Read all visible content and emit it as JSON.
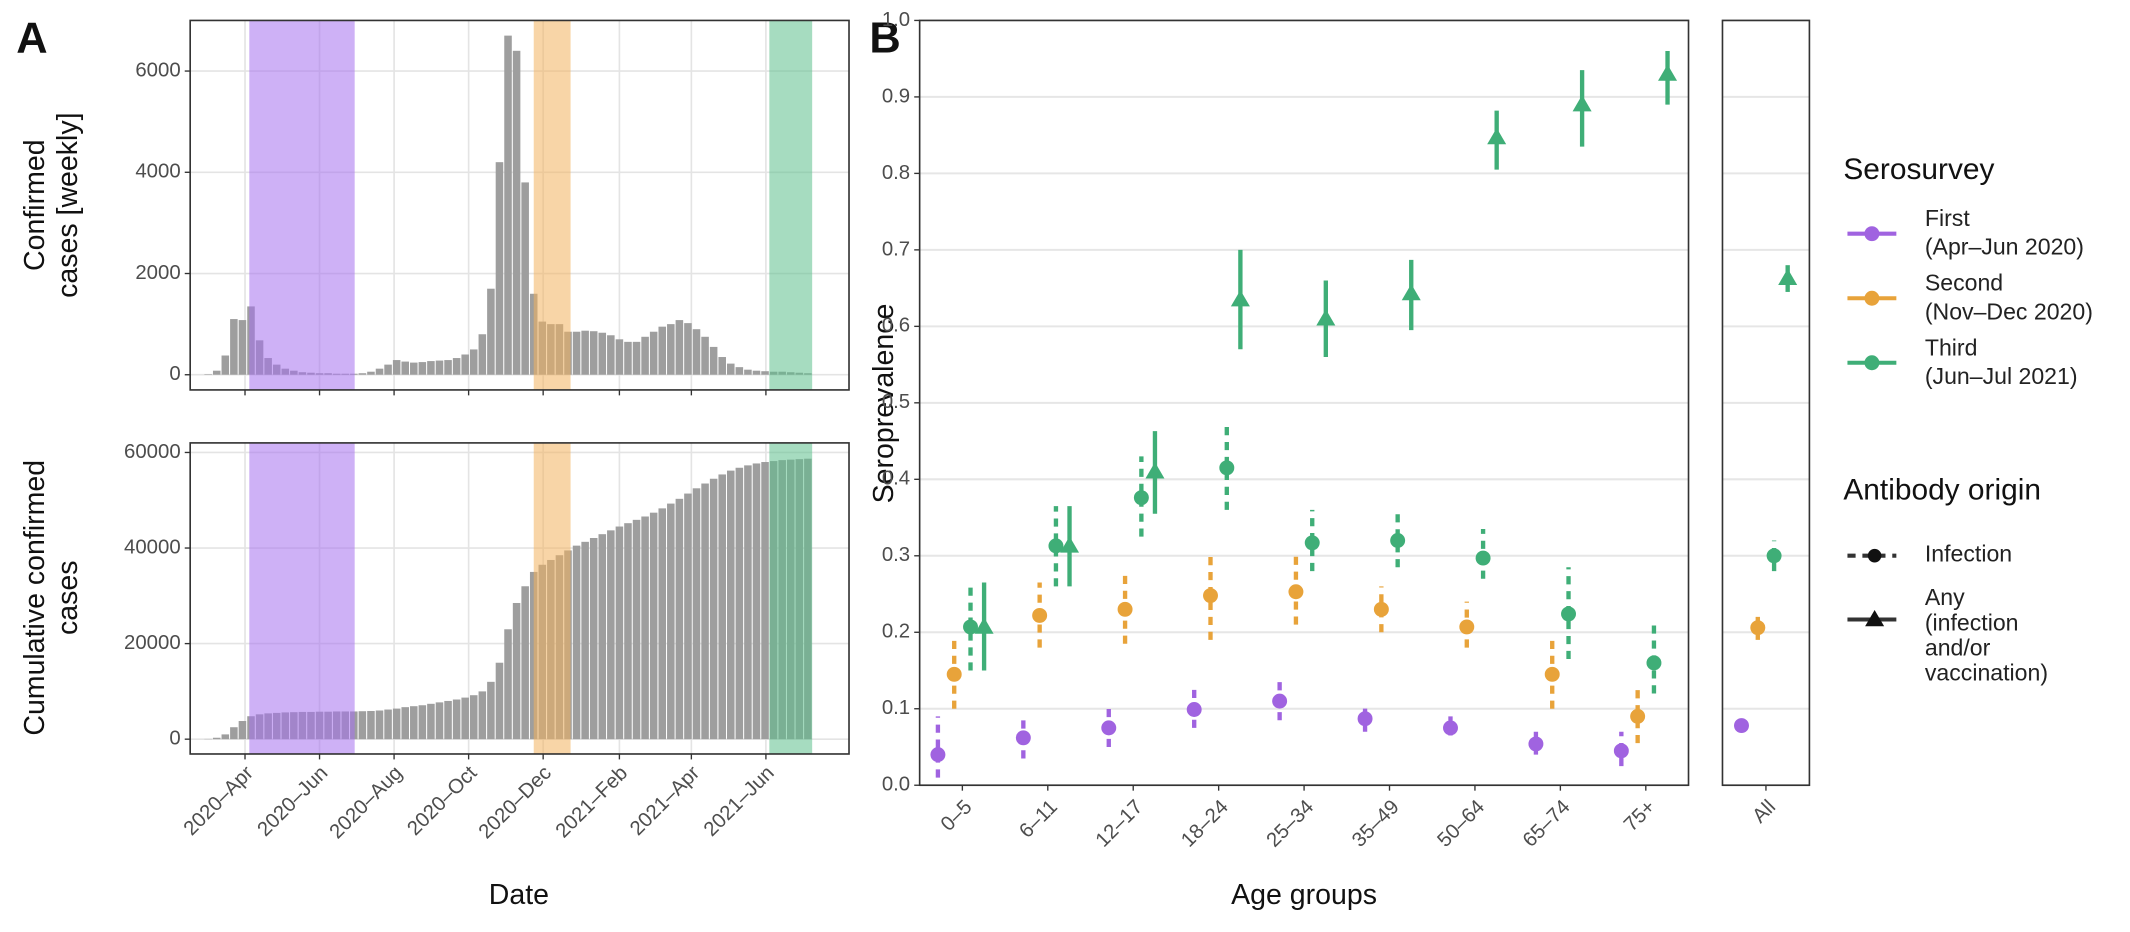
{
  "chart_data": [
    {
      "type": "bar",
      "panel": "A",
      "ylabel": [
        "Confirmed",
        "cases [weekly]"
      ],
      "x": [
        0,
        1,
        2,
        3,
        4,
        5,
        6,
        7,
        8,
        9,
        10,
        11,
        12,
        13,
        14,
        15,
        16,
        17,
        18,
        19,
        20,
        21,
        22,
        23,
        24,
        25,
        26,
        27,
        28,
        29,
        30,
        31,
        32,
        33,
        34,
        35,
        36,
        37,
        38,
        39,
        40,
        41,
        42,
        43,
        44,
        45,
        46,
        47,
        48,
        49,
        50,
        51,
        52,
        53,
        54,
        55,
        56,
        57,
        58,
        59,
        60,
        61,
        62,
        63,
        64,
        65,
        66,
        67,
        68,
        69,
        70
      ],
      "values": [
        10,
        80,
        380,
        1100,
        1080,
        1350,
        680,
        330,
        200,
        120,
        80,
        50,
        40,
        30,
        30,
        20,
        20,
        20,
        30,
        60,
        120,
        200,
        290,
        260,
        240,
        250,
        270,
        280,
        290,
        330,
        400,
        500,
        800,
        1700,
        4200,
        6700,
        6400,
        3800,
        1600,
        1050,
        1000,
        1000,
        850,
        850,
        870,
        860,
        830,
        780,
        700,
        650,
        650,
        750,
        850,
        950,
        1000,
        1080,
        1020,
        900,
        750,
        550,
        350,
        220,
        150,
        100,
        80,
        70,
        60,
        60,
        50,
        40,
        30
      ],
      "color": "#9e9e9e",
      "xlim": [
        -2.1,
        74.8
      ],
      "xticks": [
        4.3,
        13,
        21.7,
        30.4,
        39.1,
        48,
        56.4,
        65.1
      ],
      "ylim": [
        -300,
        7000
      ],
      "yticks": [
        0,
        2000,
        4000,
        6000
      ],
      "grid": true,
      "bands": [
        {
          "start": 4.8,
          "end": 17.1,
          "color": "#a571ee"
        },
        {
          "start": 38,
          "end": 42.3,
          "color": "#f2b25e"
        },
        {
          "start": 65.5,
          "end": 70.5,
          "color": "#5cc08c"
        }
      ]
    },
    {
      "type": "bar",
      "ylabel": [
        "Cumulative confirmed",
        "cases"
      ],
      "xlabel": "Date",
      "x": [
        0,
        1,
        2,
        3,
        4,
        5,
        6,
        7,
        8,
        9,
        10,
        11,
        12,
        13,
        14,
        15,
        16,
        17,
        18,
        19,
        20,
        21,
        22,
        23,
        24,
        25,
        26,
        27,
        28,
        29,
        30,
        31,
        32,
        33,
        34,
        35,
        36,
        37,
        38,
        39,
        40,
        41,
        42,
        43,
        44,
        45,
        46,
        47,
        48,
        49,
        50,
        51,
        52,
        53,
        54,
        55,
        56,
        57,
        58,
        59,
        60,
        61,
        62,
        63,
        64,
        65,
        66,
        67,
        68,
        69,
        70
      ],
      "values": [
        50,
        300,
        1000,
        2500,
        3800,
        4800,
        5200,
        5400,
        5500,
        5600,
        5650,
        5700,
        5700,
        5750,
        5750,
        5800,
        5800,
        5800,
        5850,
        5900,
        6000,
        6200,
        6400,
        6700,
        6900,
        7100,
        7400,
        7700,
        8000,
        8300,
        8700,
        9200,
        10000,
        12000,
        16000,
        23000,
        28500,
        32000,
        35000,
        36500,
        37500,
        38500,
        39500,
        40500,
        41300,
        42100,
        42900,
        43700,
        44500,
        45200,
        45900,
        46600,
        47400,
        48300,
        49300,
        50300,
        51400,
        52500,
        53500,
        54500,
        55400,
        56200,
        56800,
        57300,
        57700,
        58000,
        58200,
        58400,
        58500,
        58600,
        58700
      ],
      "color": "#9e9e9e",
      "xlim": [
        -2.1,
        74.8
      ],
      "xticks": [
        {
          "value": 4.3,
          "label": "2020–Apr"
        },
        {
          "value": 13,
          "label": "2020–Jun"
        },
        {
          "value": 21.7,
          "label": "2020–Aug"
        },
        {
          "value": 30.4,
          "label": "2020–Oct"
        },
        {
          "value": 39.1,
          "label": "2020–Dec"
        },
        {
          "value": 48,
          "label": "2021–Feb"
        },
        {
          "value": 56.4,
          "label": "2021–Apr"
        },
        {
          "value": 65.1,
          "label": "2021–Jun"
        }
      ],
      "ylim": [
        -3100,
        62000
      ],
      "yticks": [
        0,
        20000,
        40000,
        60000
      ],
      "grid": true,
      "bands": [
        {
          "start": 4.8,
          "end": 17.1,
          "color": "#a571ee"
        },
        {
          "start": 38,
          "end": 42.3,
          "color": "#f2b25e"
        },
        {
          "start": 65.5,
          "end": 70.5,
          "color": "#5cc08c"
        }
      ]
    },
    {
      "type": "pointrange",
      "panel": "B",
      "xlabel": "Age groups",
      "ylabel": "Seroprevalence",
      "categories": [
        "0–5",
        "6–11",
        "12–17",
        "18–24",
        "25–34",
        "35–49",
        "50–64",
        "65–74",
        "75+"
      ],
      "ylim": [
        0,
        1
      ],
      "yticks": [
        {
          "value": 0,
          "label": "0.0"
        },
        0.1,
        0.2,
        0.3,
        0.4,
        0.5,
        0.6,
        0.7,
        0.8,
        0.9,
        {
          "value": 1,
          "label": "1.0"
        }
      ],
      "grid": true,
      "legend": {
        "title": "Serosurvey"
      },
      "origin_legend": {
        "title": "Antibody origin",
        "infection": "Infection",
        "any": [
          "Any",
          "(infection",
          "and/or",
          "vaccination)"
        ]
      },
      "series": [
        {
          "name": "First",
          "period": "(Apr–Jun 2020)",
          "color": "#a063e0",
          "infection": {
            "values": [
              0.04,
              0.062,
              0.075,
              0.099,
              0.11,
              0.087,
              0.075,
              0.054,
              0.045
            ],
            "lower": [
              0.01,
              0.035,
              0.05,
              0.075,
              0.085,
              0.07,
              0.065,
              0.04,
              0.025
            ],
            "upper": [
              0.09,
              0.09,
              0.1,
              0.125,
              0.14,
              0.105,
              0.09,
              0.07,
              0.07
            ]
          }
        },
        {
          "name": "Second",
          "period": "(Nov–Dec 2020)",
          "color": "#e8a33a",
          "infection": {
            "values": [
              0.145,
              0.222,
              0.23,
              0.248,
              0.253,
              0.23,
              0.207,
              0.145,
              0.09
            ],
            "lower": [
              0.1,
              0.18,
              0.185,
              0.19,
              0.21,
              0.2,
              0.18,
              0.1,
              0.055
            ],
            "upper": [
              0.19,
              0.265,
              0.275,
              0.305,
              0.3,
              0.26,
              0.24,
              0.19,
              0.13
            ]
          }
        },
        {
          "name": "Third",
          "period": "(Jun–Jul 2021)",
          "color": "#3fae77",
          "infection": {
            "values": [
              0.207,
              0.313,
              0.376,
              0.415,
              0.317,
              0.32,
              0.297,
              0.224,
              0.16
            ],
            "lower": [
              0.15,
              0.26,
              0.325,
              0.36,
              0.28,
              0.285,
              0.27,
              0.165,
              0.12
            ],
            "upper": [
              0.265,
              0.365,
              0.43,
              0.47,
              0.36,
              0.36,
              0.335,
              0.285,
              0.21
            ]
          },
          "any": {
            "values": [
              0.207,
              0.313,
              0.41,
              0.635,
              0.61,
              0.643,
              0.847,
              0.89,
              0.93
            ],
            "lower": [
              0.15,
              0.26,
              0.355,
              0.57,
              0.56,
              0.595,
              0.805,
              0.835,
              0.89
            ],
            "upper": [
              0.265,
              0.365,
              0.463,
              0.7,
              0.66,
              0.687,
              0.882,
              0.935,
              0.96
            ]
          }
        }
      ]
    },
    {
      "type": "pointrange",
      "categories": [
        "All"
      ],
      "ylim": [
        0,
        1
      ],
      "grid": true,
      "series": [
        {
          "color": "#a063e0",
          "infection": {
            "values": [
              0.078
            ],
            "lower": [
              0.07
            ],
            "upper": [
              0.085
            ]
          }
        },
        {
          "color": "#e8a33a",
          "infection": {
            "values": [
              0.206
            ],
            "lower": [
              0.19
            ],
            "upper": [
              0.225
            ]
          }
        },
        {
          "color": "#3fae77",
          "infection": {
            "values": [
              0.3
            ],
            "lower": [
              0.28
            ],
            "upper": [
              0.32
            ]
          },
          "any": {
            "values": [
              0.663
            ],
            "lower": [
              0.645
            ],
            "upper": [
              0.68
            ]
          }
        }
      ]
    }
  ]
}
